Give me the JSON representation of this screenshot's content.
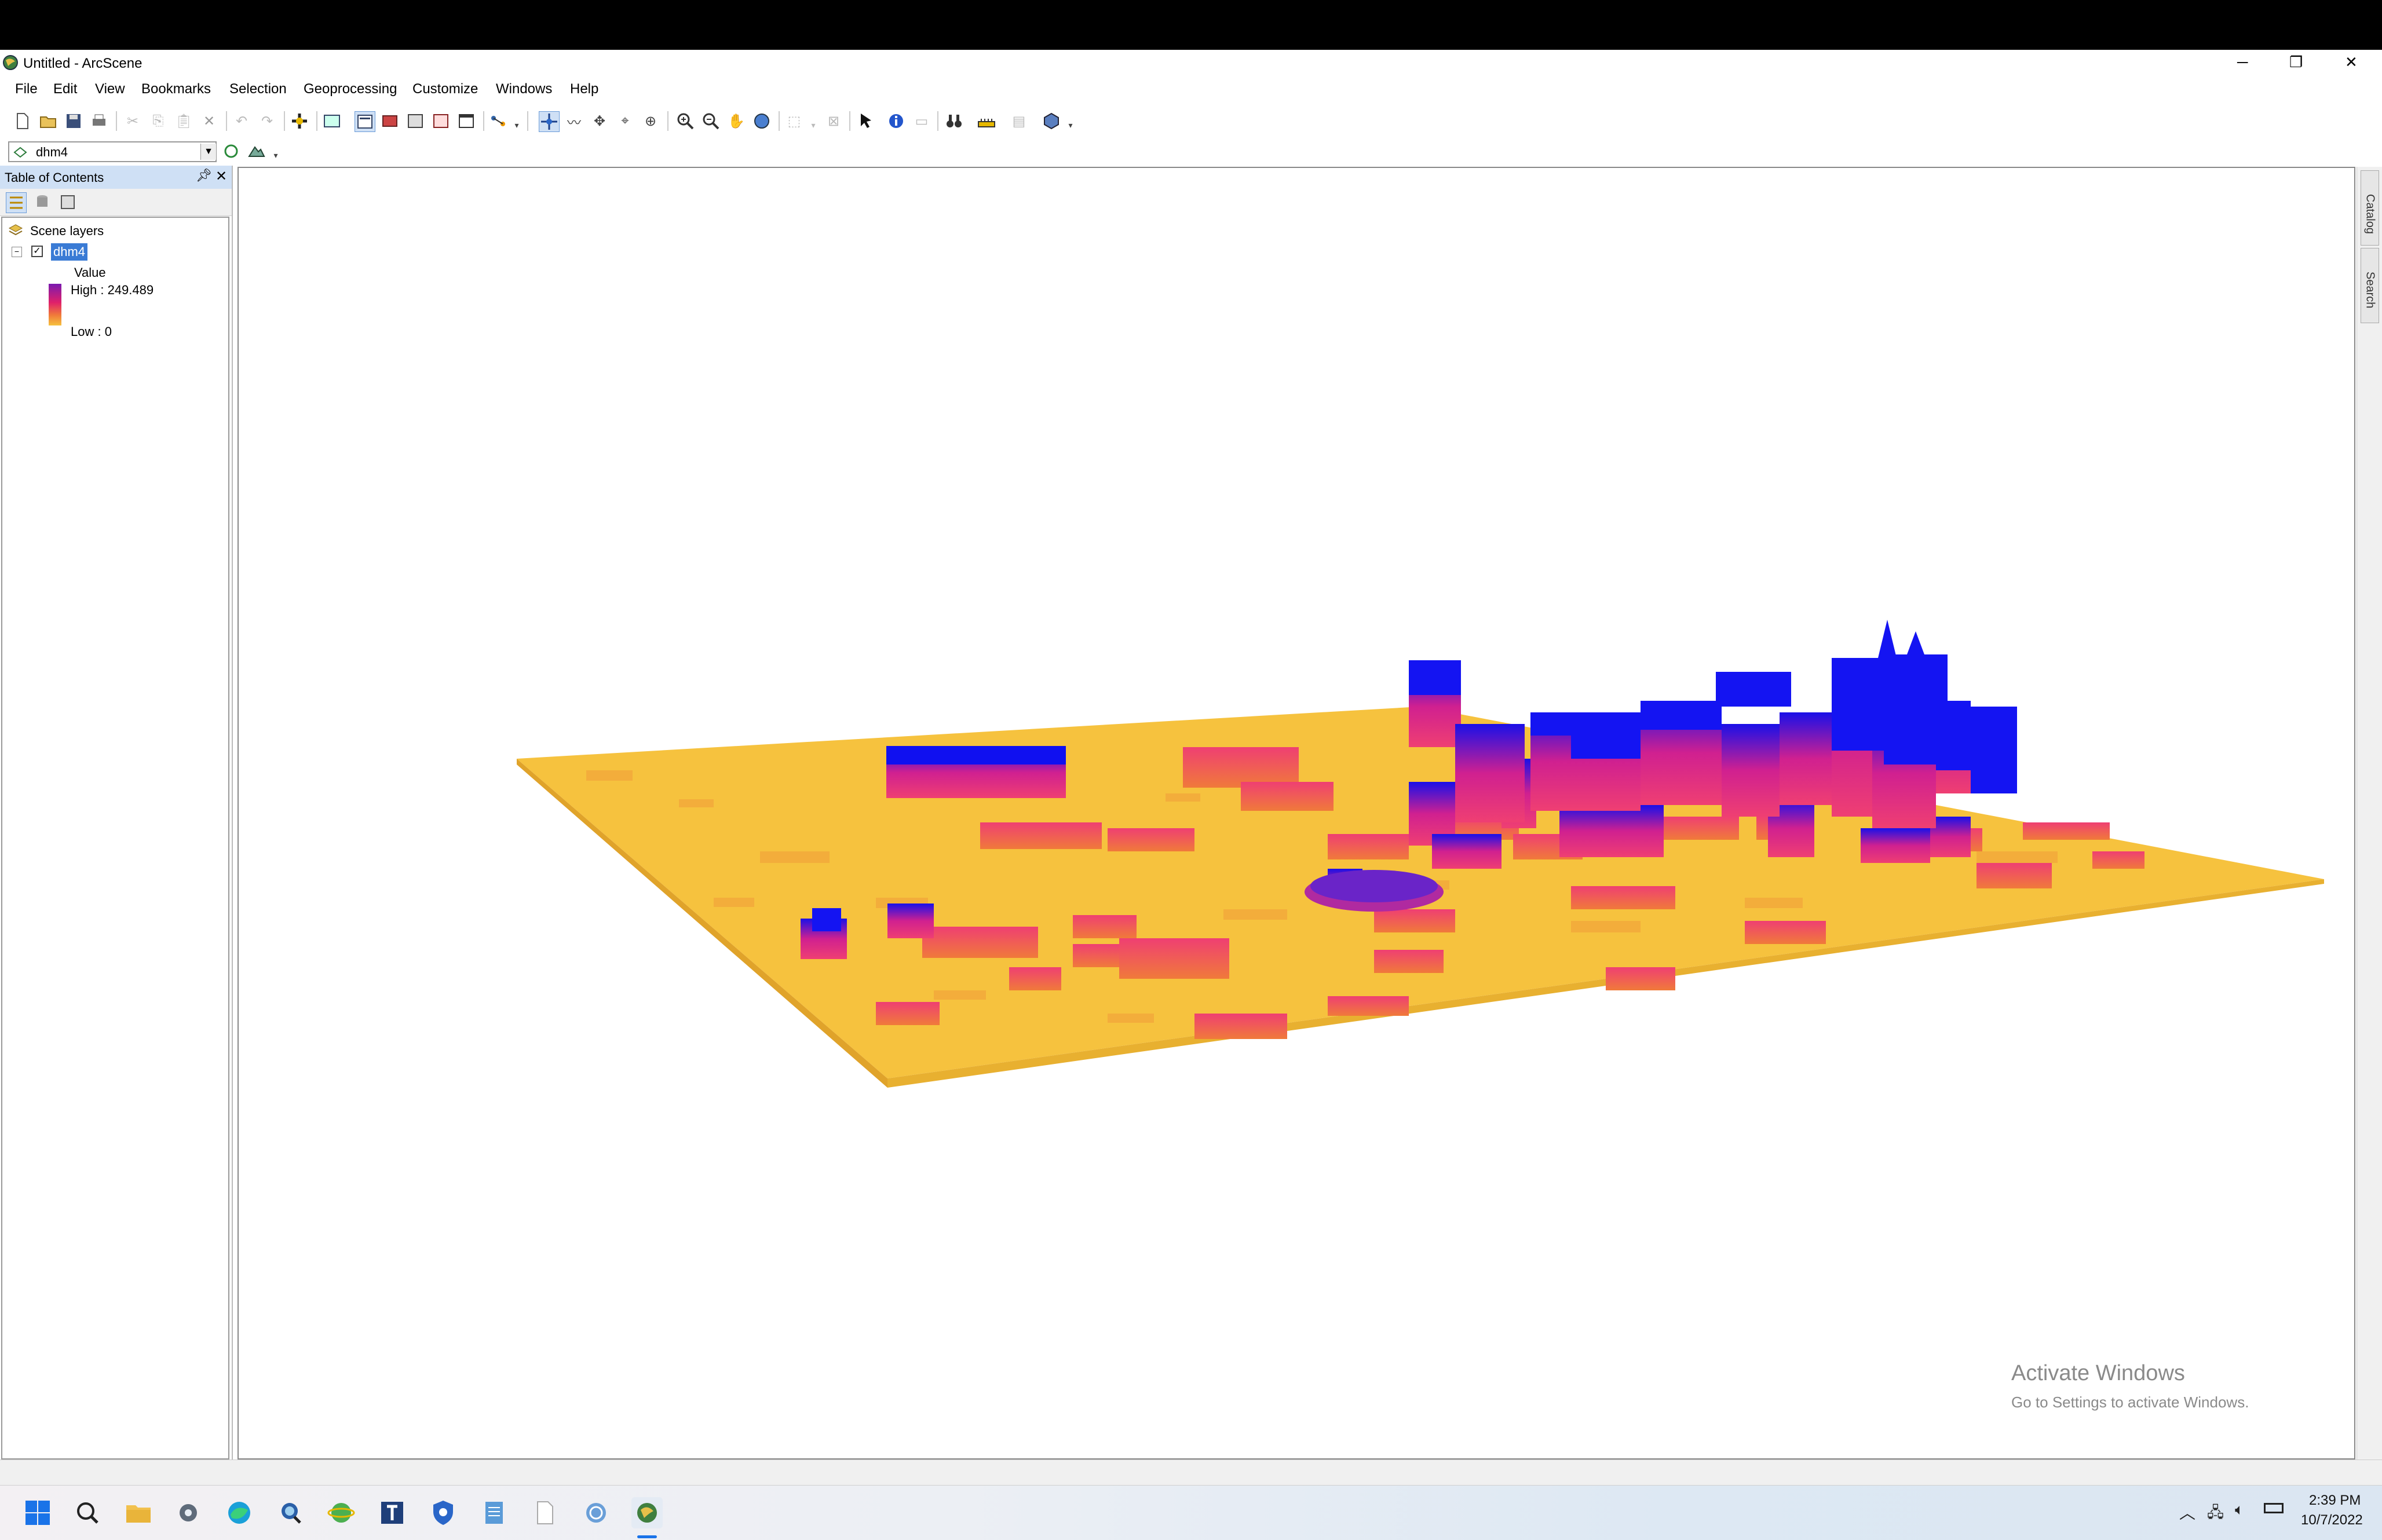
{
  "window": {
    "title": "Untitled - ArcScene",
    "controls": {
      "minimize": "─",
      "restore": "❐",
      "close": "✕"
    }
  },
  "menu": {
    "items": [
      "File",
      "Edit",
      "View",
      "Bookmarks",
      "Selection",
      "Geoprocessing",
      "Customize",
      "Windows",
      "Help"
    ]
  },
  "toolbar2": {
    "layer_select": "dhm4"
  },
  "toc": {
    "title": "Table of Contents",
    "group": "Scene layers",
    "layer": {
      "name": "dhm4",
      "checked": true,
      "legend_title": "Value",
      "high_label": "High : 249.489",
      "low_label": "Low : 0"
    }
  },
  "side_tabs": [
    "Catalog",
    "Search"
  ],
  "watermark": {
    "line1": "Activate Windows",
    "line2": "Go to Settings to activate Windows."
  },
  "taskbar": {
    "time": "2:39 PM",
    "date": "10/7/2022",
    "icons": [
      "windows-start-icon",
      "search-icon",
      "file-explorer-icon",
      "settings-icon",
      "edge-icon",
      "arcgis-search-icon",
      "arcglobe-icon",
      "text-editor-icon",
      "shield-app-icon",
      "notepad-icon",
      "blank-document-icon",
      "globe-app-icon",
      "arcscene-icon"
    ]
  },
  "colors": {
    "low": "#f6c23e",
    "mid": "#ef3f72",
    "high": "#1010f0",
    "toc_header": "#cfe0f5",
    "selection": "#3a7bd5"
  }
}
